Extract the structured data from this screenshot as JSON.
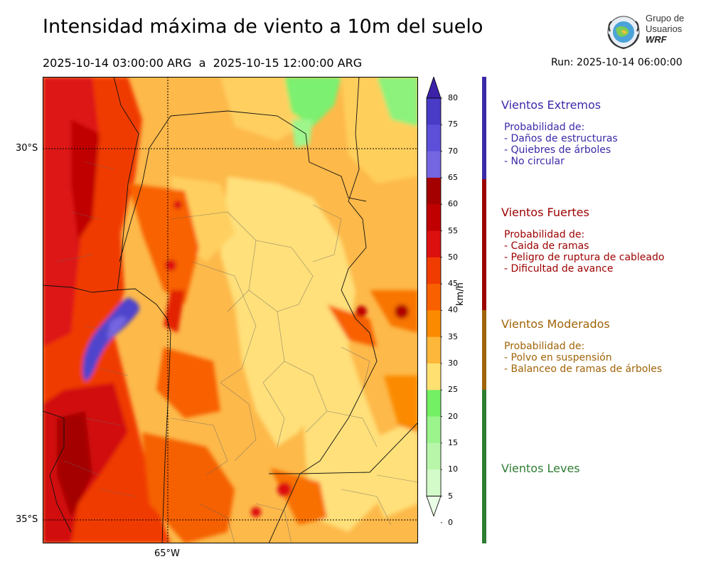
{
  "header": {
    "title": "Intensidad máxima de viento a 10m del suelo",
    "period_start": "2025-10-14 03:00:00 ARG",
    "period_sep": "a",
    "period_end": "2025-10-15 12:00:00 ARG",
    "run": "Run: 2025-10-14 06:00:00"
  },
  "logo": {
    "line1": "Grupo de",
    "line2": "Usuarios",
    "line3": "WRF"
  },
  "map": {
    "lat_labels": [
      "30°S",
      "35°S"
    ],
    "lon_labels": [
      "65°W"
    ]
  },
  "colorbar": {
    "units": "km/h",
    "ticks": [
      "80",
      "75",
      "70",
      "65",
      "60",
      "55",
      "50",
      "45",
      "40",
      "35",
      "30",
      "25",
      "20",
      "15",
      "10",
      "5",
      "0"
    ],
    "colors": [
      "#3b22a8",
      "#4a3bc6",
      "#5d4fd8",
      "#7465e0",
      "#a40000",
      "#c00000",
      "#dd1010",
      "#f03c00",
      "#f86000",
      "#fb8a00",
      "#fdb73b",
      "#ffe071",
      "#74f064",
      "#9bf48c",
      "#b8f7aa",
      "#d3fac9",
      "#eafde5"
    ]
  },
  "categories": [
    {
      "name": "Vientos Extremos",
      "color": "#3a2aa8",
      "desc_title": "Probabilidad de:",
      "items": [
        "- Daños de estructuras",
        "- Quiebres de árboles",
        "- No circular"
      ]
    },
    {
      "name": "Vientos Fuertes",
      "color": "#9c0000",
      "desc_title": "Probabilidad de:",
      "items": [
        "- Caida de ramas",
        "- Peligro de ruptura de cableado",
        "- Dificultad de avance"
      ]
    },
    {
      "name": "Vientos Moderados",
      "color": "#a06408",
      "desc_title": "Probabilidad de:",
      "items": [
        "- Polvo en suspensión",
        "- Balanceo de ramas de árboles"
      ]
    },
    {
      "name": "Vientos Leves",
      "color": "#2e7d32",
      "desc_title": "",
      "items": []
    }
  ],
  "legend_bar_colors": [
    "#3a2aa8",
    "#9c0000",
    "#ff9a00",
    "#7cf46a"
  ]
}
